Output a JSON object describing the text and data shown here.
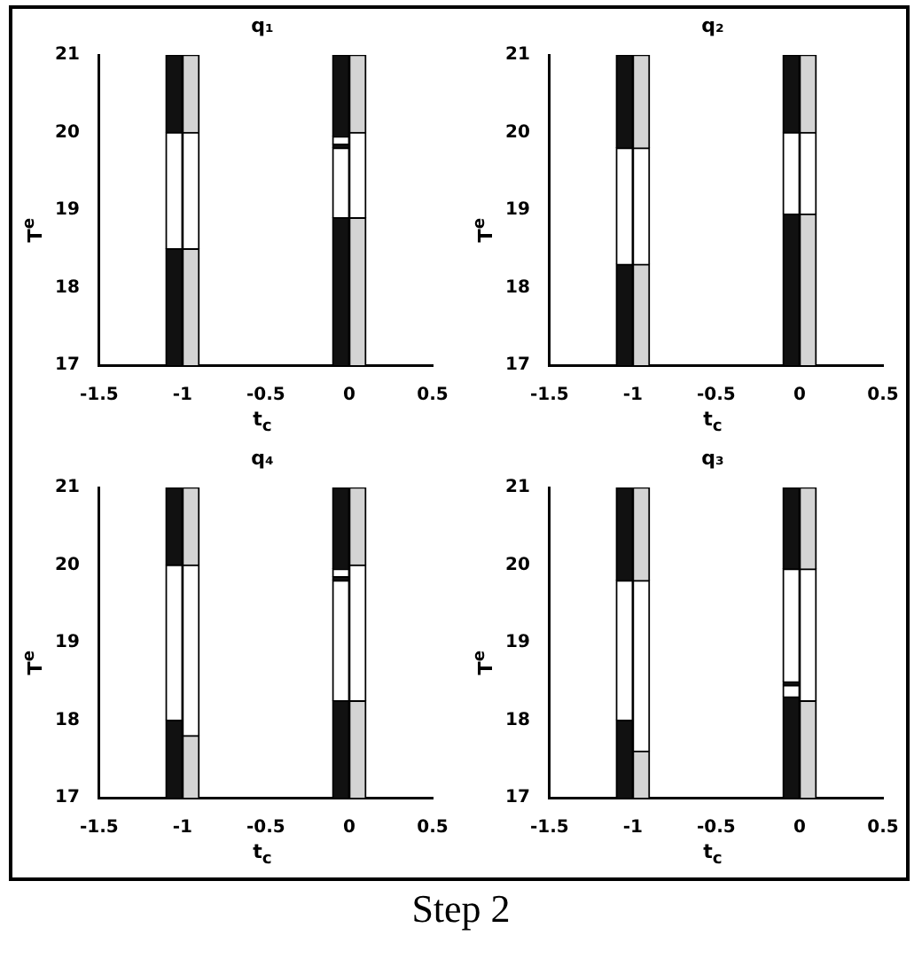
{
  "chart_data": [
    {
      "type": "bar",
      "title": "q₁",
      "xlabel": "t$_{c}$",
      "ylabel": "T$^{e}$",
      "xlim": [
        -1.5,
        0.5
      ],
      "xticks": [
        -1.5,
        -1,
        -0.5,
        0,
        0.5
      ],
      "ylim": [
        17,
        21
      ],
      "yticks": [
        17,
        18,
        19,
        20,
        21
      ],
      "grid": false,
      "series": [
        {
          "colors": [
            "#111111",
            "#d4d4d4",
            "#111111",
            "#d4d4d4"
          ],
          "x": [
            -1.05,
            -0.95,
            -0.05,
            0.05
          ],
          "base": [
            17,
            17,
            17,
            17
          ],
          "values": [
            1.5,
            1.5,
            1.9,
            1.9
          ]
        },
        {
          "color": "#ffffff",
          "x": [
            -1.05,
            -0.95,
            -0.05,
            0.05
          ],
          "base": [
            18.5,
            18.5,
            18.9,
            18.9
          ],
          "values": [
            1.5,
            1.5,
            0.9,
            1.1
          ]
        },
        {
          "colors": [
            "#111111",
            "#d4d4d4",
            "#111111",
            "#d4d4d4"
          ],
          "x": [
            -1.05,
            -0.95,
            -0.05,
            0.05
          ],
          "base": [
            20,
            20,
            19.95,
            20
          ],
          "values": [
            1,
            1,
            1.05,
            1
          ]
        },
        {
          "color": "#111111",
          "x": [
            -0.05
          ],
          "base": [
            19.8
          ],
          "values": [
            0.05
          ]
        },
        {
          "color": "#ffffff",
          "x": [
            -0.05
          ],
          "base": [
            19.85
          ],
          "values": [
            0.1
          ]
        }
      ]
    },
    {
      "type": "bar",
      "title": "q₂",
      "xlabel": "t$_{c}$",
      "ylabel": "T$^{e}$",
      "xlim": [
        -1.5,
        0.5
      ],
      "xticks": [
        -1.5,
        -1,
        -0.5,
        0,
        0.5
      ],
      "ylim": [
        17,
        21
      ],
      "yticks": [
        17,
        18,
        19,
        20,
        21
      ],
      "grid": false,
      "series": [
        {
          "colors": [
            "#111111",
            "#d4d4d4",
            "#111111",
            "#d4d4d4"
          ],
          "x": [
            -1.05,
            -0.95,
            -0.05,
            0.05
          ],
          "base": [
            17,
            17,
            17,
            17
          ],
          "values": [
            1.3,
            1.3,
            1.95,
            1.95
          ]
        },
        {
          "color": "#ffffff",
          "x": [
            -1.05,
            -0.95,
            -0.05,
            0.05
          ],
          "base": [
            18.3,
            18.3,
            18.95,
            18.95
          ],
          "values": [
            1.5,
            1.5,
            1.05,
            1.05
          ]
        },
        {
          "colors": [
            "#111111",
            "#d4d4d4",
            "#111111",
            "#d4d4d4"
          ],
          "x": [
            -1.05,
            -0.95,
            -0.05,
            0.05
          ],
          "base": [
            19.8,
            19.8,
            20,
            20
          ],
          "values": [
            1.2,
            1.2,
            1,
            1
          ]
        }
      ]
    },
    {
      "type": "bar",
      "title": "q₄",
      "xlabel": "t$_{c}$",
      "ylabel": "T$^{e}$",
      "xlim": [
        -1.5,
        0.5
      ],
      "xticks": [
        -1.5,
        -1,
        -0.5,
        0,
        0.5
      ],
      "ylim": [
        17,
        21
      ],
      "yticks": [
        17,
        18,
        19,
        20,
        21
      ],
      "grid": false,
      "series": [
        {
          "colors": [
            "#111111",
            "#d4d4d4",
            "#111111",
            "#d4d4d4"
          ],
          "x": [
            -1.05,
            -0.95,
            -0.05,
            0.05
          ],
          "base": [
            17,
            17,
            17,
            17
          ],
          "values": [
            1,
            0.8,
            1.25,
            1.25
          ]
        },
        {
          "color": "#ffffff",
          "x": [
            -1.05,
            -0.95,
            -0.05,
            0.05
          ],
          "base": [
            18,
            17.8,
            18.25,
            18.25
          ],
          "values": [
            2,
            2.2,
            1.55,
            1.75
          ]
        },
        {
          "colors": [
            "#111111",
            "#d4d4d4",
            "#111111",
            "#d4d4d4"
          ],
          "x": [
            -1.05,
            -0.95,
            -0.05,
            0.05
          ],
          "base": [
            20,
            20,
            19.95,
            20
          ],
          "values": [
            1,
            1,
            1.05,
            1
          ]
        },
        {
          "color": "#111111",
          "x": [
            -0.05
          ],
          "base": [
            19.8
          ],
          "values": [
            0.05
          ]
        },
        {
          "color": "#ffffff",
          "x": [
            -0.05
          ],
          "base": [
            19.85
          ],
          "values": [
            0.1
          ]
        }
      ]
    },
    {
      "type": "bar",
      "title": "q₃",
      "xlabel": "t$_{c}$",
      "ylabel": "T$^{e}$",
      "xlim": [
        -1.5,
        0.5
      ],
      "xticks": [
        -1.5,
        -1,
        -0.5,
        0,
        0.5
      ],
      "ylim": [
        17,
        21
      ],
      "yticks": [
        17,
        18,
        19,
        20,
        21
      ],
      "grid": false,
      "annotations": [
        "Step 2"
      ],
      "series": [
        {
          "colors": [
            "#111111",
            "#d4d4d4",
            "#111111",
            "#d4d4d4"
          ],
          "x": [
            -1.05,
            -0.95,
            -0.05,
            0.05
          ],
          "base": [
            17,
            17,
            17,
            17
          ],
          "values": [
            1,
            0.6,
            1.3,
            1.25
          ]
        },
        {
          "color": "#ffffff",
          "x": [
            -1.05,
            -0.95,
            -0.05,
            0.05
          ],
          "base": [
            18,
            17.6,
            18.5,
            18.25
          ],
          "values": [
            1.8,
            2.2,
            1.45,
            1.7
          ]
        },
        {
          "colors": [
            "#111111",
            "#d4d4d4",
            "#111111",
            "#d4d4d4"
          ],
          "x": [
            -1.05,
            -0.95,
            -0.05,
            0.05
          ],
          "base": [
            19.8,
            19.8,
            19.95,
            19.95
          ],
          "values": [
            1.2,
            1.2,
            1.05,
            1.05
          ]
        },
        {
          "color": "#ffffff",
          "x": [
            -0.05
          ],
          "base": [
            18.3
          ],
          "values": [
            0.15
          ]
        },
        {
          "color": "#111111",
          "x": [
            -0.05
          ],
          "base": [
            18.45
          ],
          "values": [
            0.05
          ]
        }
      ]
    }
  ]
}
